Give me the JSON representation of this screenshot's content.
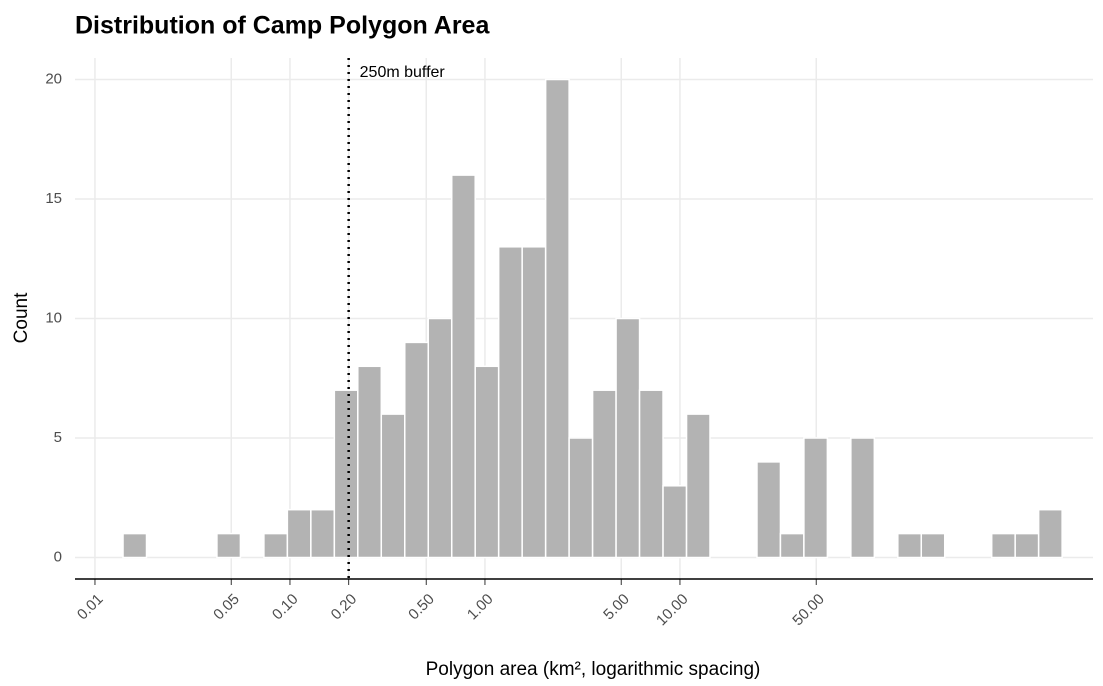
{
  "chart_data": {
    "type": "histogram",
    "title": "Distribution of Camp Polygon Area",
    "x_label": "Polygon area (km², logarithmic spacing)",
    "y_label": "Count",
    "x_log": true,
    "grid": true,
    "color": "#b3b3b3",
    "bins": [
      0.01393,
      0.01838,
      0.02425,
      0.03199,
      0.04221,
      0.05572,
      0.07351,
      0.097,
      0.128,
      0.1689,
      0.2228,
      0.294,
      0.388,
      0.512,
      0.6755,
      0.8913,
      1.176,
      1.552,
      2.048,
      2.702,
      3.565,
      4.704,
      6.207,
      8.19,
      10.81,
      14.26,
      18.82,
      24.83,
      32.76,
      43.22,
      57.02,
      75.23,
      99.27,
      131.0,
      172.8,
      228.0,
      300.9,
      397.0,
      523.8,
      691.1,
      912.0
    ],
    "counts": [
      1,
      0,
      0,
      0,
      1,
      0,
      1,
      2,
      2,
      7,
      8,
      6,
      9,
      10,
      16,
      8,
      13,
      13,
      20,
      5,
      7,
      10,
      7,
      3,
      6,
      0,
      0,
      4,
      1,
      5,
      0,
      5,
      0,
      1,
      1,
      0,
      0,
      1,
      1,
      2
    ],
    "xlim": [
      0.0079,
      1313
    ],
    "ylim": [
      -0.9,
      20.9
    ],
    "xticks": [
      0.01,
      0.05,
      {
        "value": 0.1,
        "label": "0.10"
      },
      {
        "value": 0.2,
        "label": "0.20"
      },
      {
        "value": 0.5,
        "label": "0.50"
      },
      {
        "value": 1,
        "label": "1.00"
      },
      {
        "value": 5,
        "label": "5.00"
      },
      {
        "value": 10,
        "label": "10.00"
      },
      {
        "value": 50,
        "label": "50.00"
      }
    ],
    "yticks": [
      0,
      5,
      10,
      15,
      20
    ],
    "annotations": [
      {
        "x": 0.2,
        "label": "250m buffer"
      }
    ]
  }
}
